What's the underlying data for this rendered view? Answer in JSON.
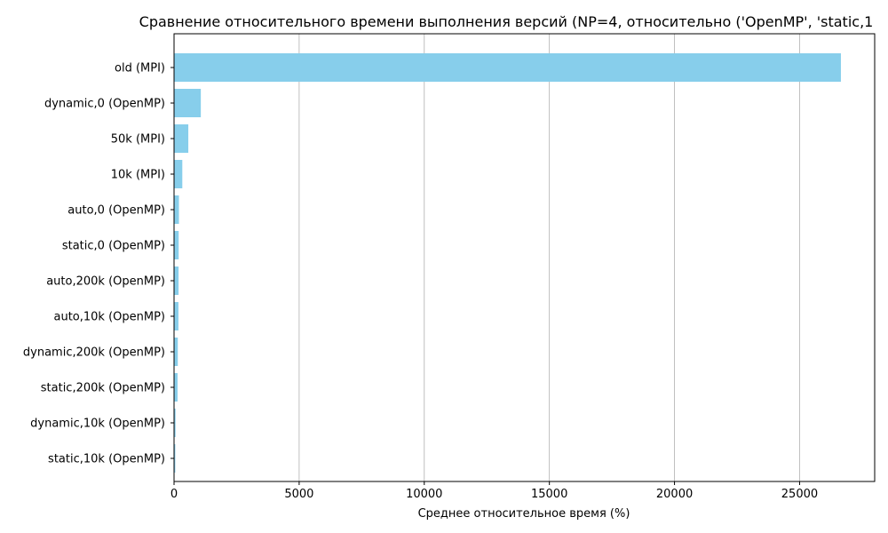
{
  "chart_data": {
    "type": "bar",
    "orientation": "horizontal",
    "title": "Сравнение относительного времени выполнения версий (NP=4, относительно ('OpenMP', 'static,1",
    "xlabel": "Среднее относительное время (%)",
    "ylabel": "",
    "xlim": [
      0,
      28000
    ],
    "xticks": [
      0,
      5000,
      10000,
      15000,
      20000,
      25000
    ],
    "grid": "x",
    "legend": "none",
    "bar_color": "#87CEEB",
    "categories": [
      "old (MPI)",
      "dynamic,0 (OpenMP)",
      "50k (MPI)",
      "10k (MPI)",
      "auto,0 (OpenMP)",
      "static,0 (OpenMP)",
      "auto,200k (OpenMP)",
      "auto,10k (OpenMP)",
      "dynamic,200k (OpenMP)",
      "static,200k (OpenMP)",
      "dynamic,10k (OpenMP)",
      "static,10k (OpenMP)"
    ],
    "values": [
      26650,
      1070,
      570,
      330,
      195,
      185,
      180,
      175,
      150,
      140,
      60,
      50
    ]
  }
}
